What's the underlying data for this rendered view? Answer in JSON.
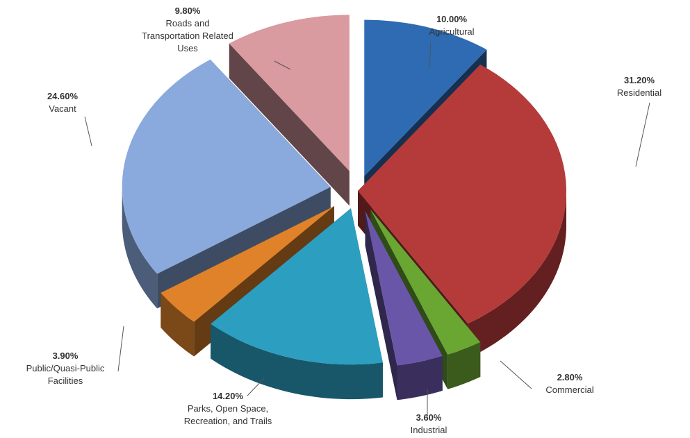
{
  "chart_data": {
    "type": "pie",
    "style": "3d-exploded",
    "title": "",
    "legend": "none",
    "slices": [
      {
        "name": "Agricultural",
        "value": 10.0,
        "label": "10.00%",
        "color": "#2e6bb3"
      },
      {
        "name": "Residential",
        "value": 31.2,
        "label": "31.20%",
        "color": "#b53a3a"
      },
      {
        "name": "Commercial",
        "value": 2.8,
        "label": "2.80%",
        "color": "#69a632"
      },
      {
        "name": "Industrial",
        "value": 3.6,
        "label": "3.60%",
        "color": "#6a56a8"
      },
      {
        "name": "Parks, Open Space, Recreation, and Trails",
        "value": 14.2,
        "label": "14.20%",
        "color": "#2c9ec0"
      },
      {
        "name": "Public/Quasi-Public Facilities",
        "value": 3.9,
        "label": "3.90%",
        "color": "#e0822a"
      },
      {
        "name": "Vacant",
        "value": 24.6,
        "label": "24.60%",
        "color": "#8aa9dc"
      },
      {
        "name": "Roads and Transportation Related Uses",
        "value": 9.8,
        "label": "9.80%",
        "color": "#d99aa0"
      }
    ]
  }
}
